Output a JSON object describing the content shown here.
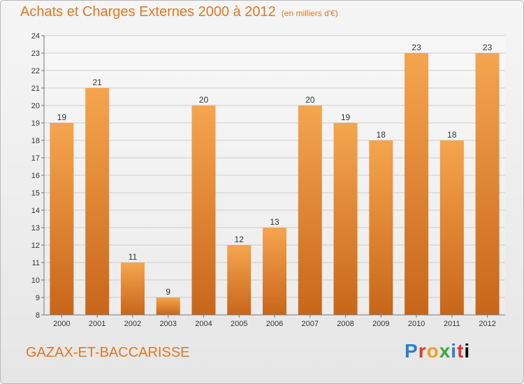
{
  "header": {
    "title": "Achats et Charges Externes 2000 à 2012",
    "subtitle": "(en milliers d'€)"
  },
  "footer": {
    "commune": "GAZAX-ET-BACCARISSE",
    "logo_text": "Proxiti"
  },
  "colors": {
    "bar_top": "#f5a54f",
    "bar_bottom": "#c8661a",
    "text": "#e07820",
    "grid": "#cccccc"
  },
  "chart_data": {
    "type": "bar",
    "categories": [
      "2000",
      "2001",
      "2002",
      "2003",
      "2004",
      "2005",
      "2006",
      "2007",
      "2008",
      "2009",
      "2010",
      "2011",
      "2012"
    ],
    "values": [
      19,
      21,
      11,
      9,
      20,
      12,
      13,
      20,
      19,
      18,
      23,
      18,
      23
    ],
    "ylim": [
      8,
      24
    ],
    "yticks": [
      8,
      9,
      10,
      11,
      12,
      13,
      14,
      15,
      16,
      17,
      18,
      19,
      20,
      21,
      22,
      23,
      24
    ],
    "data_labels": true,
    "grid": true,
    "legend": "none"
  }
}
